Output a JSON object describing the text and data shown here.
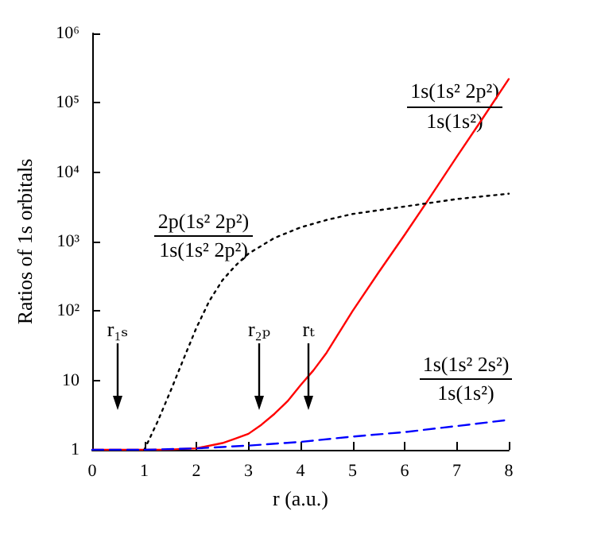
{
  "chart_data": {
    "type": "line",
    "xlabel": "r (a.u.)",
    "ylabel": "Ratios of 1s orbitals",
    "log": "y",
    "grid": false,
    "marker": "none",
    "xlim": [
      0,
      8
    ],
    "xticks": [
      0,
      1,
      2,
      3,
      4,
      5,
      6,
      7,
      8
    ],
    "ylim": [
      1,
      1000000
    ],
    "yticks": [
      1,
      10,
      {
        "value": 100,
        "label": "10²"
      },
      {
        "value": 1000,
        "label": "10³"
      },
      {
        "value": 10000,
        "label": "10⁴"
      },
      {
        "value": 100000,
        "label": "10⁵"
      },
      {
        "value": 1000000,
        "label": "10⁶"
      }
    ],
    "series": [
      {
        "color": "#ff0000",
        "line_style": "solid",
        "x": [
          0,
          1,
          1.5,
          2,
          2.5,
          2.75,
          3,
          3.25,
          3.5,
          3.75,
          4,
          4.25,
          4.5,
          5,
          5.5,
          6,
          6.5,
          7,
          7.5,
          8
        ],
        "values": [
          1,
          1,
          1.01,
          1.05,
          1.25,
          1.45,
          1.7,
          2.3,
          3.3,
          5,
          8.5,
          14,
          25,
          100,
          360,
          1250,
          4500,
          16600,
          60000,
          220000
        ]
      },
      {
        "color": "#000000",
        "line_style": "dotted",
        "x": [
          1,
          1.25,
          1.5,
          1.75,
          2,
          2.25,
          2.5,
          2.75,
          3,
          3.5,
          4,
          4.5,
          5,
          6,
          7,
          8
        ],
        "values": [
          1,
          2.5,
          6.9,
          20,
          57,
          140,
          277,
          450,
          670,
          1130,
          1600,
          2050,
          2500,
          3200,
          4100,
          4900
        ]
      },
      {
        "color": "#0000ff",
        "line_style": "dashed",
        "x": [
          0,
          1,
          2,
          3,
          4,
          5,
          6,
          7,
          8
        ],
        "values": [
          1,
          1,
          1.05,
          1.15,
          1.3,
          1.55,
          1.8,
          2.2,
          2.7
        ]
      }
    ],
    "annotations": [
      "1s(1s² 2p²)",
      "1s(1s²)",
      "2p(1s² 2p²)",
      "1s(1s² 2p²)",
      "1s(1s² 2s²)",
      "1s(1s²)",
      "r₁ₛ",
      "r₂ₚ",
      "rₜ"
    ]
  }
}
